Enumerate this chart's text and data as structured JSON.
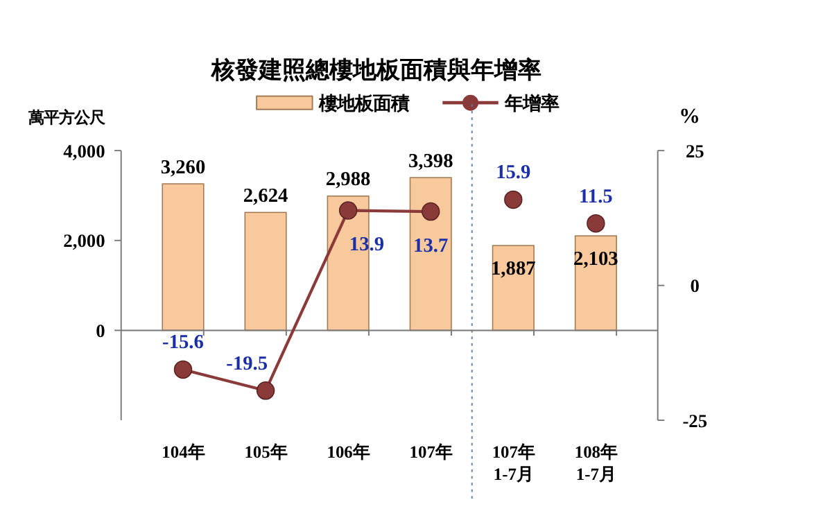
{
  "chart_data": {
    "type": "bar",
    "title": "核發建照總樓地板面積與年增率",
    "ylabel": "萬平方公尺",
    "y2label": "%",
    "categories": [
      "104年",
      "105年",
      "106年",
      "107年",
      "107年\n1-7月",
      "108年\n1-7月"
    ],
    "series": [
      {
        "name": "樓地板面積",
        "color": "#f8c99c",
        "values": [
          3260,
          2624,
          2988,
          3398,
          1887,
          2103
        ],
        "value_labels": [
          "3,260",
          "2,624",
          "2,988",
          "3,398",
          "1,887",
          "2,103"
        ]
      },
      {
        "name": "年增率",
        "type": "line",
        "axis": "y2",
        "color": "#8b3a3a",
        "marker": "circle",
        "values": [
          -15.6,
          -19.5,
          13.9,
          13.7,
          null,
          null
        ]
      },
      {
        "type": "scatter",
        "axis": "y2",
        "color": "#8b3a3a",
        "marker": "circle",
        "values": [
          null,
          null,
          null,
          null,
          15.9,
          11.5
        ]
      }
    ],
    "ylim": [
      -2000,
      4000
    ],
    "yticks": [
      0,
      {
        "value": 2000,
        "label": "2,000"
      },
      {
        "value": 4000,
        "label": "4,000"
      }
    ],
    "y2lim": [
      -25,
      25
    ],
    "y2ticks": [
      -25,
      0,
      25
    ],
    "data_labels": true,
    "legend": "top"
  }
}
